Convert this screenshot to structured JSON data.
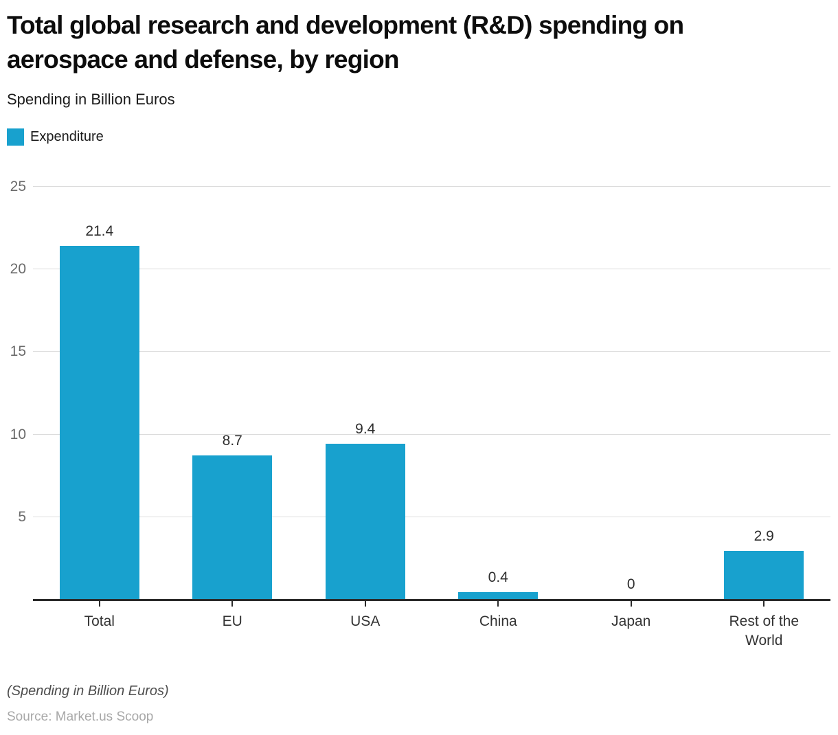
{
  "header": {
    "title": "Total global research and development (R&D) spending on aerospace and defense, by region",
    "subtitle": "Spending in Billion Euros"
  },
  "legend": {
    "label": "Expenditure",
    "color": "#18a1ce"
  },
  "chart_data": {
    "type": "bar",
    "title": "Total global research and development (R&D) spending on aerospace and defense, by region",
    "subtitle": "Spending in Billion Euros",
    "series_name": "Expenditure",
    "categories": [
      "Total",
      "EU",
      "USA",
      "China",
      "Japan",
      "Rest of the World"
    ],
    "values": [
      21.4,
      8.7,
      9.4,
      0.4,
      0,
      2.9
    ],
    "data_labels": [
      "21.4",
      "8.7",
      "9.4",
      "0.4",
      "0",
      "2.9"
    ],
    "xlabel": "",
    "ylabel": "",
    "ylim": [
      0,
      25
    ],
    "yticks": [
      5,
      10,
      15,
      20,
      25
    ],
    "grid": true,
    "legend_position": "top-left",
    "bar_color": "#18a1ce",
    "gridline_color": "#dcdcdc",
    "axis_line_color": "#2a2a2a"
  },
  "footer": {
    "note": "(Spending in Billion Euros)",
    "source": "Source: Market.us Scoop"
  }
}
